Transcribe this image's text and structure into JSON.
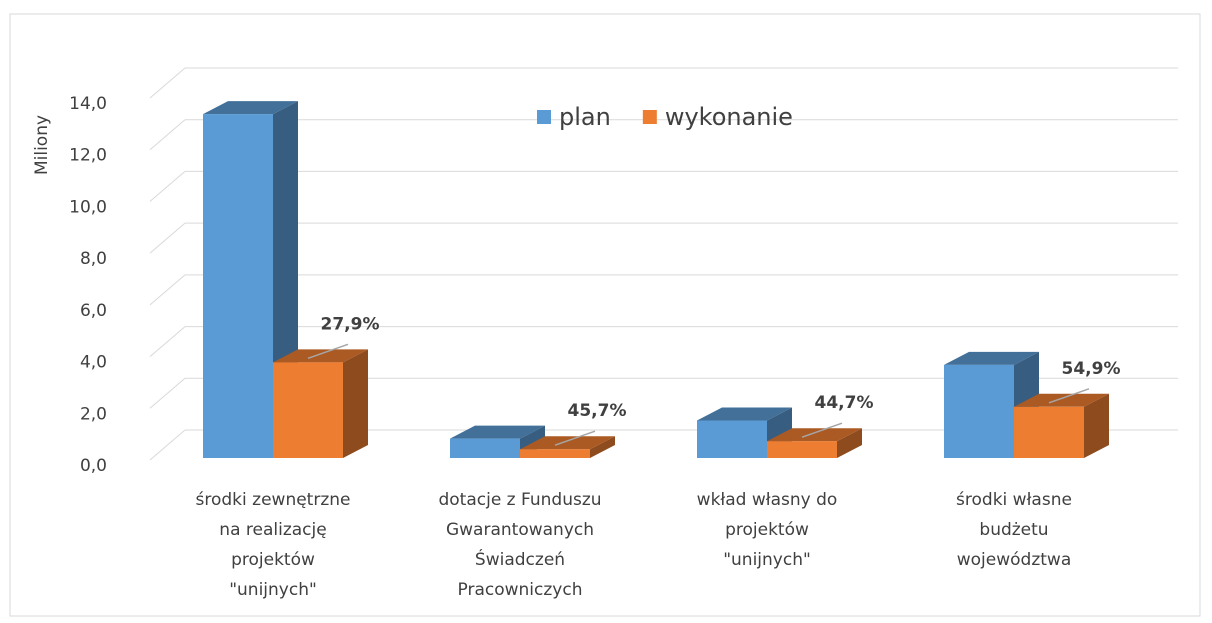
{
  "chart_data": {
    "type": "bar3d",
    "y_axis_label": "Miliony",
    "categories": [
      [
        "środki zewnętrzne",
        "na realizację",
        "projektów",
        "\"unijnych\""
      ],
      [
        "dotacje z Funduszu",
        "Gwarantowanych",
        "Świadczeń",
        "Pracowniczych"
      ],
      [
        "wkład własny do",
        "projektów",
        "\"unijnych\""
      ],
      [
        "środki własne",
        "budżetu",
        "województwa"
      ]
    ],
    "series": [
      {
        "name": "plan",
        "color": "#5b9bd5",
        "values": [
          13.3,
          0.75,
          1.45,
          3.6
        ]
      },
      {
        "name": "wykonanie",
        "color": "#ed7d31",
        "values": [
          3.7,
          0.34,
          0.65,
          1.98
        ]
      }
    ],
    "annotations": [
      "27,9%",
      "45,7%",
      "44,7%",
      "54,9%"
    ],
    "ylim": [
      0,
      14
    ],
    "yticks": [
      {
        "value": 0,
        "label": "0,0"
      },
      {
        "value": 2,
        "label": "2,0"
      },
      {
        "value": 4,
        "label": "4,0"
      },
      {
        "value": 6,
        "label": "6,0"
      },
      {
        "value": 8,
        "label": "8,0"
      },
      {
        "value": 10,
        "label": "10,0"
      },
      {
        "value": 12,
        "label": "12,0"
      },
      {
        "value": 14,
        "label": "14,0"
      }
    ],
    "grid": true
  }
}
